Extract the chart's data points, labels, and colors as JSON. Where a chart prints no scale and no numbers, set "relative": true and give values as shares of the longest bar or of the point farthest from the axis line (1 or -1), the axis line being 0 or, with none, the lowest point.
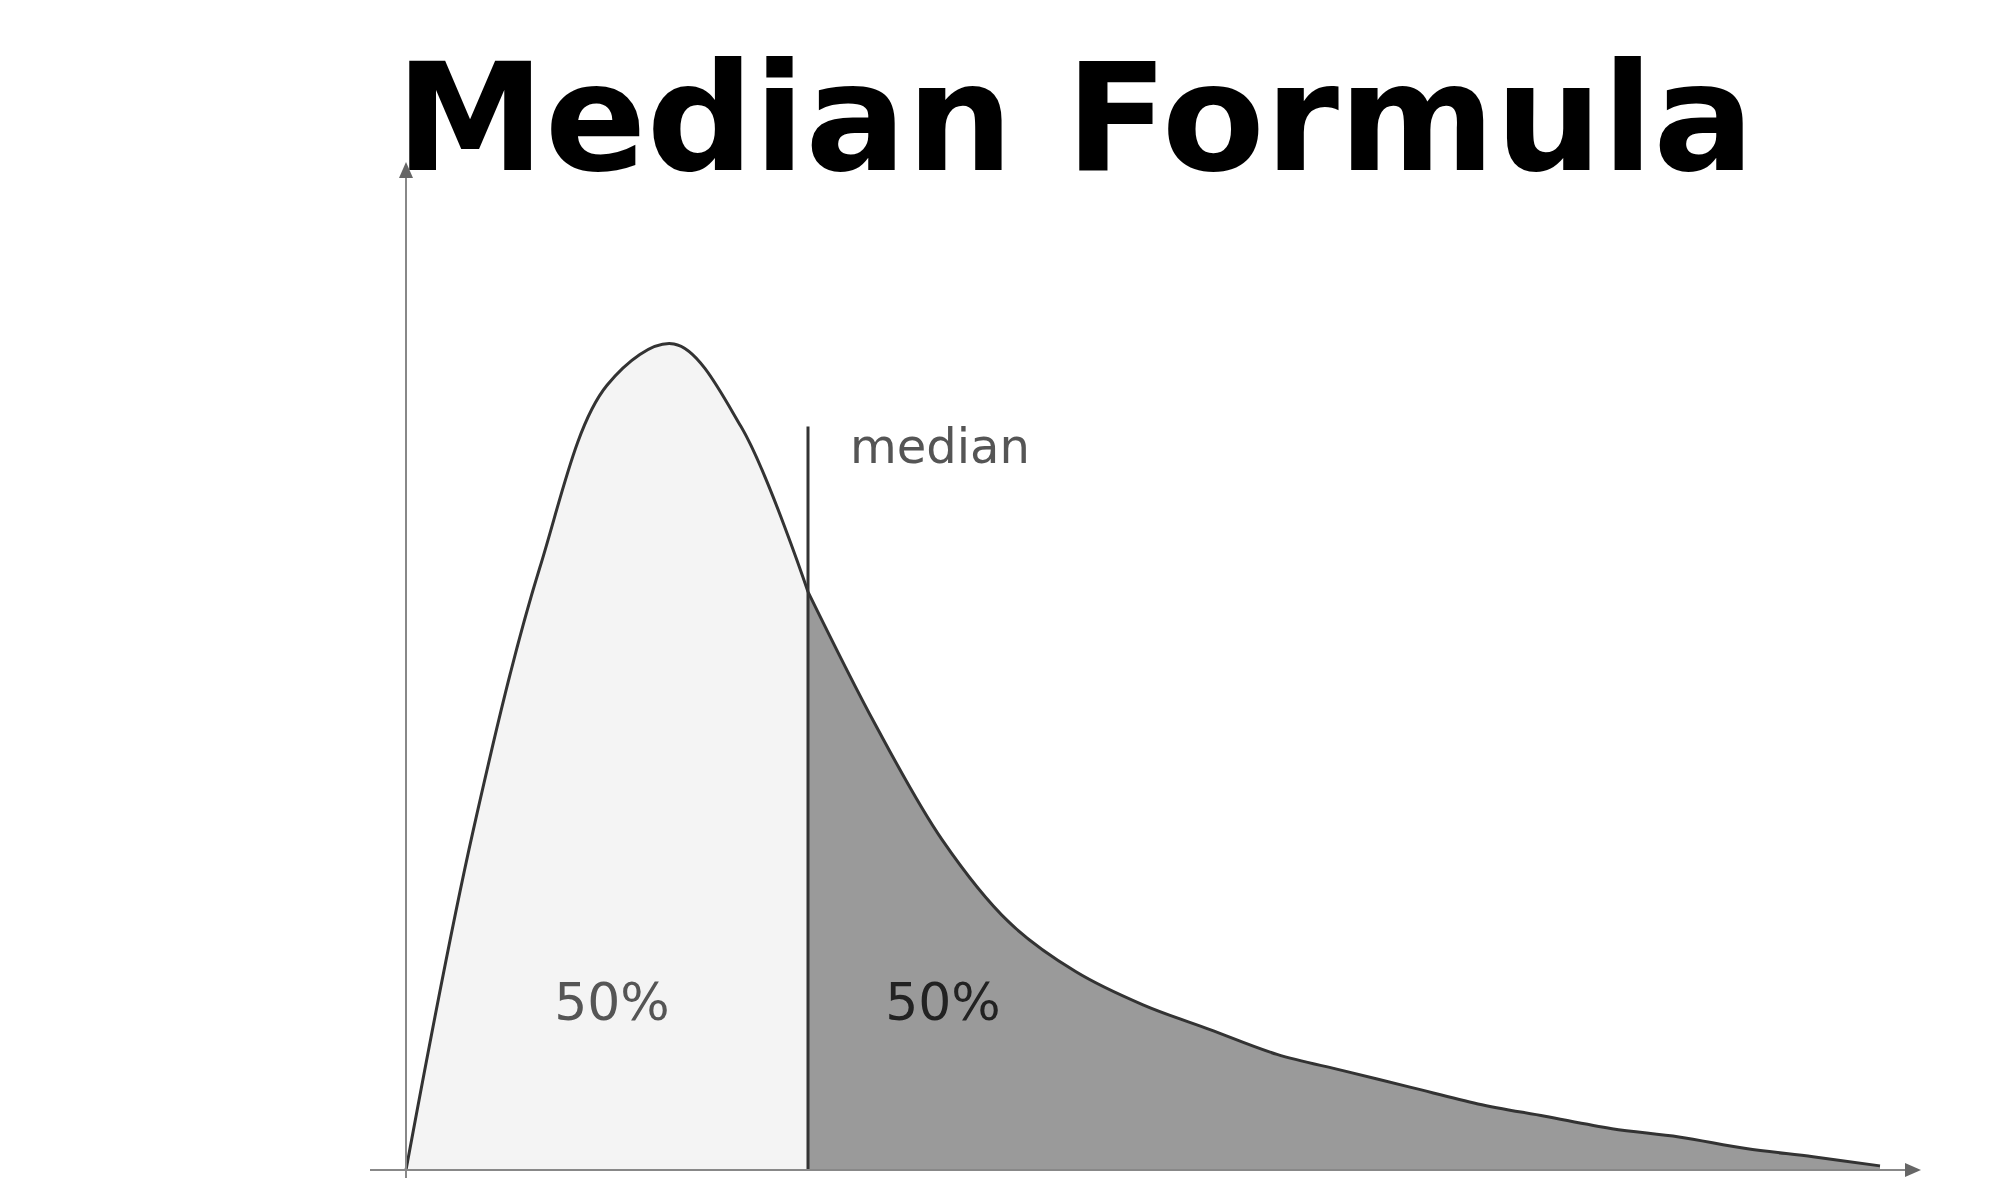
{
  "chart_data": {
    "type": "area",
    "title": "Median Formula",
    "relative": true,
    "categories": [
      null,
      null,
      null,
      null,
      null,
      null,
      null,
      null,
      null,
      null,
      null,
      null,
      null,
      null,
      null,
      null,
      null,
      null,
      null,
      null,
      null,
      null,
      null
    ],
    "series": [
      {
        "color": "#f4f4f4",
        "values": [
          0,
          0.41,
          0.73,
          0.95,
          1,
          0.9,
          0.7,
          null,
          null,
          null,
          null,
          null,
          null,
          null,
          null,
          null,
          null,
          null,
          null,
          null,
          null,
          null,
          null
        ]
      },
      {
        "color": "#9a9a9a",
        "values": [
          null,
          null,
          null,
          null,
          null,
          null,
          0.7,
          0.54,
          0.4,
          0.3,
          0.24,
          0.2,
          0.17,
          0.14,
          0.12,
          0.1,
          0.08,
          0.065,
          0.05,
          0.04,
          0.026,
          0.016,
          0.005
        ]
      }
    ],
    "annotations": [
      "median",
      "50%",
      "50%"
    ]
  }
}
